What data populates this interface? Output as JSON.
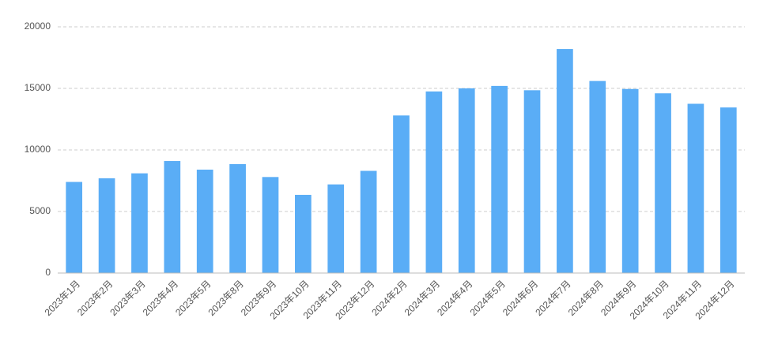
{
  "chart_data": {
    "type": "bar",
    "categories": [
      "2023年1月",
      "2023年2月",
      "2023年3月",
      "2023年4月",
      "2023年5月",
      "2023年8月",
      "2023年9月",
      "2023年10月",
      "2023年11月",
      "2023年12月",
      "2024年2月",
      "2024年3月",
      "2024年4月",
      "2024年5月",
      "2024年6月",
      "2024年7月",
      "2024年8月",
      "2024年9月",
      "2024年10月",
      "2024年11月",
      "2024年12月"
    ],
    "values": [
      7400,
      7700,
      8100,
      9100,
      8400,
      8850,
      7800,
      6350,
      7200,
      8300,
      12800,
      14750,
      15000,
      15200,
      14850,
      18200,
      15600,
      14950,
      14600,
      13750,
      13450
    ],
    "color": "#5aadf6",
    "ylim": [
      0,
      20000
    ],
    "yticks": [
      0,
      5000,
      10000,
      15000,
      20000
    ],
    "grid": true
  }
}
